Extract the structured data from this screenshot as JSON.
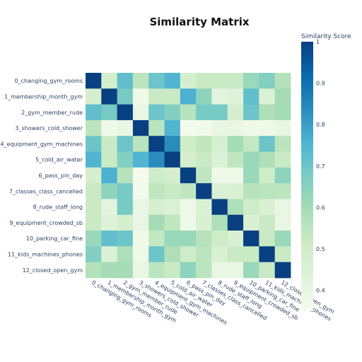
{
  "chart_data": {
    "type": "heatmap",
    "title": "Similarity Matrix",
    "colorbar_title": "Similarity Score",
    "colorbar_ticks": [
      "1",
      "0.9",
      "0.8",
      "0.7",
      "0.6",
      "0.5",
      "0.4"
    ],
    "colorscale": [
      "#f7fcf0",
      "#e0f3db",
      "#ccebc5",
      "#a8ddb5",
      "#7bccc4",
      "#4eb3d3",
      "#2b8cbe",
      "#0868ac",
      "#084081"
    ],
    "zmin": 0.35,
    "zmax": 1.0,
    "labels": [
      "0_changing_gym_rooms",
      "1_membership_month_gym",
      "2_gym_member_rude",
      "3_showers_cold_shower",
      "4_equipment_gym_machines",
      "5_cold_air_water",
      "6_pass_pin_day",
      "7_classes_class_cancelled",
      "8_rude_staff_long",
      "9_equipment_crowded_sb",
      "10_parking_car_fine",
      "11_kids_machines_phones",
      "12_closed_open_gym"
    ],
    "z": [
      [
        1.0,
        0.48,
        0.72,
        0.55,
        0.7,
        0.75,
        0.48,
        0.52,
        0.52,
        0.52,
        0.62,
        0.66,
        0.57
      ],
      [
        0.48,
        1.0,
        0.68,
        0.38,
        0.52,
        0.52,
        0.76,
        0.64,
        0.42,
        0.44,
        0.72,
        0.45,
        0.6
      ],
      [
        0.72,
        0.68,
        1.0,
        0.4,
        0.7,
        0.66,
        0.56,
        0.68,
        0.68,
        0.48,
        0.7,
        0.58,
        0.6
      ],
      [
        0.55,
        0.38,
        0.4,
        1.0,
        0.55,
        0.75,
        0.36,
        0.37,
        0.4,
        0.4,
        0.38,
        0.38,
        0.4
      ],
      [
        0.7,
        0.52,
        0.7,
        0.55,
        1.0,
        0.84,
        0.5,
        0.54,
        0.47,
        0.6,
        0.53,
        0.7,
        0.55
      ],
      [
        0.75,
        0.52,
        0.66,
        0.75,
        0.84,
        1.0,
        0.48,
        0.52,
        0.45,
        0.54,
        0.62,
        0.58,
        0.52
      ],
      [
        0.48,
        0.76,
        0.56,
        0.36,
        0.5,
        0.48,
        1.0,
        0.54,
        0.38,
        0.38,
        0.62,
        0.5,
        0.64
      ],
      [
        0.52,
        0.64,
        0.68,
        0.37,
        0.54,
        0.52,
        0.54,
        1.0,
        0.45,
        0.46,
        0.56,
        0.55,
        0.55
      ],
      [
        0.52,
        0.42,
        0.68,
        0.4,
        0.47,
        0.45,
        0.38,
        0.45,
        1.0,
        0.58,
        0.5,
        0.46,
        0.4
      ],
      [
        0.52,
        0.44,
        0.48,
        0.4,
        0.6,
        0.54,
        0.38,
        0.46,
        0.58,
        1.0,
        0.46,
        0.52,
        0.4
      ],
      [
        0.62,
        0.72,
        0.7,
        0.38,
        0.53,
        0.62,
        0.62,
        0.56,
        0.5,
        0.46,
        1.0,
        0.52,
        0.62
      ],
      [
        0.66,
        0.45,
        0.58,
        0.38,
        0.7,
        0.58,
        0.5,
        0.55,
        0.46,
        0.52,
        0.52,
        1.0,
        0.52
      ],
      [
        0.57,
        0.6,
        0.6,
        0.4,
        0.55,
        0.52,
        0.64,
        0.55,
        0.4,
        0.4,
        0.62,
        0.52,
        1.0
      ]
    ]
  }
}
